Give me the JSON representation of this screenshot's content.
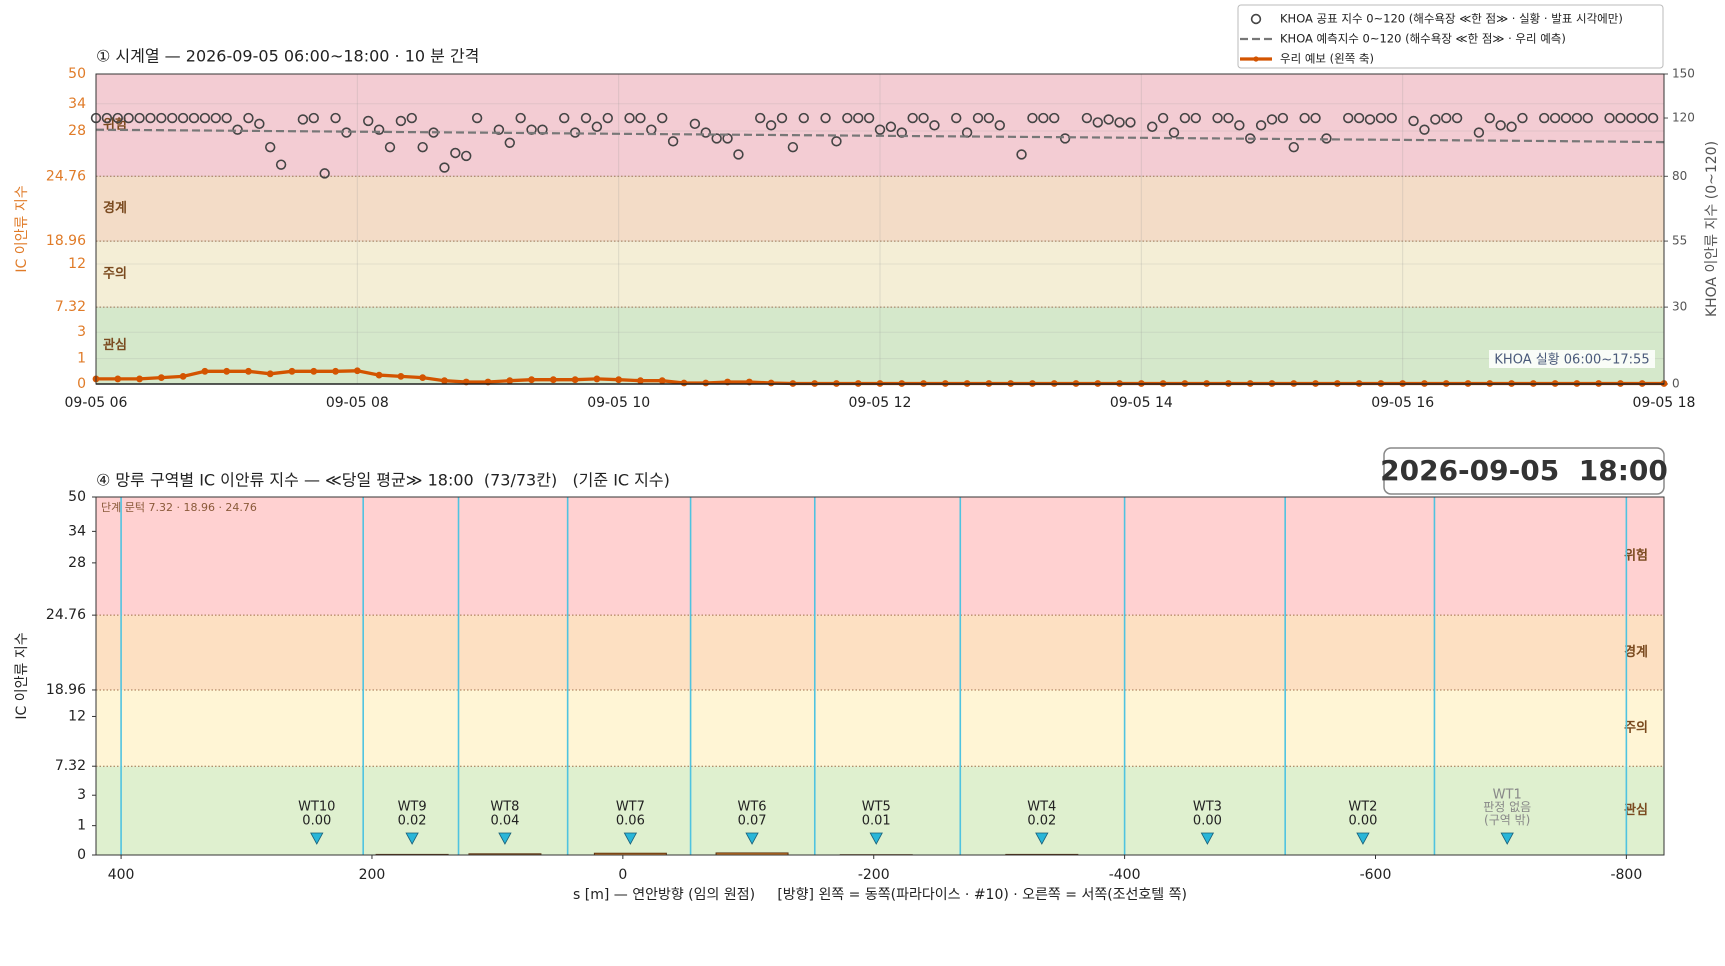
{
  "chart_data": [
    {
      "type": "line",
      "title": "① 시계열 — 2026-09-05 06:00~18:00 · 10 분 간격",
      "ylabel": "IC 이안류 지수",
      "y2label": "KHOA 이안류 지수 (0~120)",
      "xlim": [
        "06:00",
        "18:00"
      ],
      "xticks": [
        {
          "value": "06:00",
          "label": "09-05 06"
        },
        {
          "value": "08:00",
          "label": "09-05 08"
        },
        {
          "value": "10:00",
          "label": "09-05 10"
        },
        {
          "value": "12:00",
          "label": "09-05 12"
        },
        {
          "value": "14:00",
          "label": "09-05 14"
        },
        {
          "value": "16:00",
          "label": "09-05 16"
        },
        {
          "value": "18:00",
          "label": "09-05 18"
        }
      ],
      "ylim": [
        0,
        50
      ],
      "yticks": [
        0,
        1,
        3,
        7.32,
        12,
        18.96,
        24.76,
        28,
        34,
        50
      ],
      "y2lim": [
        0,
        150
      ],
      "y2ticks": [
        0,
        30,
        55,
        80,
        120,
        150
      ],
      "bands": [
        {
          "name": "관심",
          "from": 0,
          "to": 7.32,
          "color": "#d5e8cb"
        },
        {
          "name": "주의",
          "from": 7.32,
          "to": 18.96,
          "color": "#f4eed6"
        },
        {
          "name": "경계",
          "from": 18.96,
          "to": 24.76,
          "color": "#f3dcc7"
        },
        {
          "name": "위험",
          "from": 24.76,
          "to": 50,
          "color": "#f3ccd3"
        }
      ],
      "grid": true,
      "legend": "upper right",
      "annotation": "KHOA 실황 06:00~17:55",
      "series": [
        {
          "name": "KHOA 공표 지수 0~120 (해수욕장 ≪한 점≫ · 실황 · 발표 시각에만)",
          "color": "#444444",
          "style": "markers",
          "axis": "y2",
          "x": [
            "06:00",
            "06:05",
            "06:10",
            "06:15",
            "06:20",
            "06:25",
            "06:30",
            "06:35",
            "06:40",
            "06:45",
            "06:50",
            "06:55",
            "07:00",
            "07:05",
            "07:10",
            "07:15",
            "07:20",
            "07:25",
            "07:30",
            "07:35",
            "07:40",
            "07:45",
            "07:50",
            "07:55",
            "08:00",
            "08:05",
            "08:10",
            "08:15",
            "08:20",
            "08:25",
            "08:30",
            "08:35",
            "08:40",
            "08:45",
            "08:50",
            "08:55",
            "09:00",
            "09:05",
            "09:10",
            "09:15",
            "09:20",
            "09:25",
            "09:30",
            "09:35",
            "09:40",
            "09:45",
            "09:50",
            "09:55",
            "10:00",
            "10:05",
            "10:10",
            "10:15",
            "10:20",
            "10:25",
            "10:30",
            "10:35",
            "10:40",
            "10:45",
            "10:50",
            "10:55",
            "11:00",
            "11:05",
            "11:10",
            "11:15",
            "11:20",
            "11:25",
            "11:30",
            "11:35",
            "11:40",
            "11:45",
            "11:50",
            "11:55",
            "12:00",
            "12:05",
            "12:10",
            "12:15",
            "12:20",
            "12:25",
            "12:30",
            "12:35",
            "12:40",
            "12:45",
            "12:50",
            "12:55",
            "13:00",
            "13:05",
            "13:10",
            "13:15",
            "13:20",
            "13:25",
            "13:30",
            "13:35",
            "13:40",
            "13:45",
            "13:50",
            "13:55",
            "14:00",
            "14:05",
            "14:10",
            "14:15",
            "14:20",
            "14:25",
            "14:30",
            "14:35",
            "14:40",
            "14:45",
            "14:50",
            "14:55",
            "15:00",
            "15:05",
            "15:10",
            "15:15",
            "15:20",
            "15:25",
            "15:30",
            "15:35",
            "15:40",
            "15:45",
            "15:50",
            "15:55",
            "16:00",
            "16:05",
            "16:10",
            "16:15",
            "16:20",
            "16:25",
            "16:30",
            "16:35",
            "16:40",
            "16:45",
            "16:50",
            "16:55",
            "17:00",
            "17:05",
            "17:10",
            "17:15",
            "17:20",
            "17:25",
            "17:30",
            "17:35",
            "17:40",
            "17:45",
            "17:50",
            "17:55"
          ],
          "values": [
            120,
            120,
            120,
            120,
            120,
            120,
            120,
            120,
            120,
            120,
            120,
            120,
            120,
            112,
            120,
            116,
            100,
            88,
            null,
            119,
            120,
            82,
            120,
            110,
            null,
            118,
            112,
            100,
            118,
            120,
            100,
            110,
            86,
            96,
            94,
            120,
            null,
            112,
            103,
            120,
            112,
            112,
            null,
            120,
            110,
            120,
            114,
            120,
            null,
            120,
            120,
            112,
            120,
            104,
            null,
            116,
            110,
            106,
            106,
            95,
            null,
            120,
            115,
            120,
            100,
            120,
            null,
            120,
            104,
            120,
            120,
            120,
            112,
            114,
            110,
            120,
            120,
            115,
            null,
            120,
            110,
            120,
            120,
            115,
            null,
            95,
            120,
            120,
            120,
            106,
            null,
            120,
            117,
            119,
            117,
            117,
            null,
            114,
            120,
            110,
            120,
            120,
            null,
            120,
            120,
            115,
            106,
            115,
            119,
            120,
            100,
            120,
            120,
            106,
            null,
            120,
            120,
            119,
            120,
            120,
            null,
            118,
            112,
            119,
            120,
            120,
            null,
            110,
            120,
            115,
            114,
            120,
            null,
            120,
            120,
            120,
            120,
            120,
            null,
            120,
            120,
            120,
            120,
            120
          ]
        },
        {
          "name": "KHOA 예측지수 0~120 (해수욕장 ≪한 점≫ · 우리 예측)",
          "color": "#777777",
          "style": "dashed",
          "axis": "y2",
          "x": [
            "06:00",
            "07:00",
            "08:00",
            "09:00",
            "10:00",
            "11:00",
            "12:00",
            "13:00",
            "14:00",
            "15:00",
            "16:00",
            "17:00",
            "18:00"
          ],
          "values": [
            112,
            111.3,
            110.6,
            109.9,
            109.2,
            108.5,
            107.8,
            107.1,
            106.4,
            105.7,
            105,
            104.3,
            103.5
          ]
        },
        {
          "name": "우리 예보 (왼쪽 축)",
          "color": "#d35400",
          "style": "line-markers",
          "x": [
            "06:00",
            "06:10",
            "06:20",
            "06:30",
            "06:40",
            "06:50",
            "07:00",
            "07:10",
            "07:20",
            "07:30",
            "07:40",
            "07:50",
            "08:00",
            "08:10",
            "08:20",
            "08:30",
            "08:40",
            "08:50",
            "09:00",
            "09:10",
            "09:20",
            "09:30",
            "09:40",
            "09:50",
            "10:00",
            "10:10",
            "10:20",
            "10:30",
            "10:40",
            "10:50",
            "11:00",
            "11:10",
            "11:20",
            "11:30",
            "11:40",
            "11:50",
            "12:00",
            "12:10",
            "12:20",
            "12:30",
            "12:40",
            "12:50",
            "13:00",
            "13:10",
            "13:20",
            "13:30",
            "13:40",
            "13:50",
            "14:00",
            "14:10",
            "14:20",
            "14:30",
            "14:40",
            "14:50",
            "15:00",
            "15:10",
            "15:20",
            "15:30",
            "15:40",
            "15:50",
            "16:00",
            "16:10",
            "16:20",
            "16:30",
            "16:40",
            "16:50",
            "17:00",
            "17:10",
            "17:20",
            "17:30",
            "17:40",
            "17:50",
            "18:00"
          ],
          "values": [
            0.2,
            0.2,
            0.2,
            0.25,
            0.3,
            0.5,
            0.5,
            0.5,
            0.4,
            0.5,
            0.5,
            0.5,
            0.52,
            0.35,
            0.3,
            0.25,
            0.13,
            0.08,
            0.08,
            0.13,
            0.17,
            0.17,
            0.17,
            0.2,
            0.17,
            0.13,
            0.13,
            0.04,
            0.04,
            0.08,
            0.08,
            0.04,
            0.02,
            0.02,
            0.02,
            0.02,
            0.02,
            0.02,
            0.02,
            0.02,
            0.02,
            0.02,
            0.02,
            0.02,
            0.02,
            0.02,
            0.02,
            0.02,
            0.02,
            0.02,
            0.02,
            0.02,
            0.02,
            0.02,
            0.02,
            0.02,
            0.02,
            0.02,
            0.02,
            0.02,
            0.02,
            0.02,
            0.02,
            0.02,
            0.02,
            0.02,
            0.02,
            0.02,
            0.02,
            0.02,
            0.02,
            0.02,
            0.02
          ]
        }
      ]
    },
    {
      "type": "bar",
      "title": "④ 망루 구역별 IC 이안류 지수 — ≪당일 평균≫ 18:00  (73/73칸)   (기준 IC 지수)",
      "ylabel": "IC 이안류 지수",
      "xlabel": "s [m] — 연안방향 (임의 원점)     [방향] 왼쪽 = 동쪽(파라다이스 · #10) · 오른쪽 = 서쪽(조선호텔 쪽)",
      "threshold_note": "단계 문턱 7.32 · 18.96 · 24.76",
      "timestamp": "2026-09-05  18:00",
      "xlim": [
        420,
        -830
      ],
      "xticks": [
        400,
        200,
        0,
        -200,
        -400,
        -600,
        -800
      ],
      "ylim": [
        0,
        50
      ],
      "yticks": [
        0,
        1,
        3,
        7.32,
        12,
        18.96,
        24.76,
        28,
        34,
        50
      ],
      "bands": [
        {
          "name": "관심",
          "from": 0,
          "to": 7.32,
          "color": "#dff0cf"
        },
        {
          "name": "주의",
          "from": 7.32,
          "to": 18.96,
          "color": "#fff5d5"
        },
        {
          "name": "경계",
          "from": 18.96,
          "to": 24.76,
          "color": "#fde0c2"
        },
        {
          "name": "위험",
          "from": 24.76,
          "to": 50,
          "color": "#ffd1d1"
        }
      ],
      "boundaries": [
        400,
        207,
        131,
        44,
        -54,
        -153,
        -269,
        -400,
        -528,
        -647,
        -800
      ],
      "boundary_color": "#4fc3e0",
      "categories": [
        "WT10",
        "WT9",
        "WT8",
        "WT7",
        "WT6",
        "WT5",
        "WT4",
        "WT3",
        "WT2",
        "WT1"
      ],
      "positions": [
        244,
        168,
        94,
        -6,
        -103,
        -202,
        -334,
        -466,
        -590,
        -705
      ],
      "values": [
        0,
        0.02,
        0.04,
        0.06,
        0.07,
        0.01,
        0.02,
        0,
        0,
        null
      ],
      "value_labels": [
        "0.00",
        "0.02",
        "0.04",
        "0.06",
        "0.07",
        "0.01",
        "0.02",
        "0.00",
        "0.00",
        "판정 없음\n(구역 밖)"
      ],
      "color": "#d9822b",
      "marker_color": "#29b6d8"
    }
  ]
}
